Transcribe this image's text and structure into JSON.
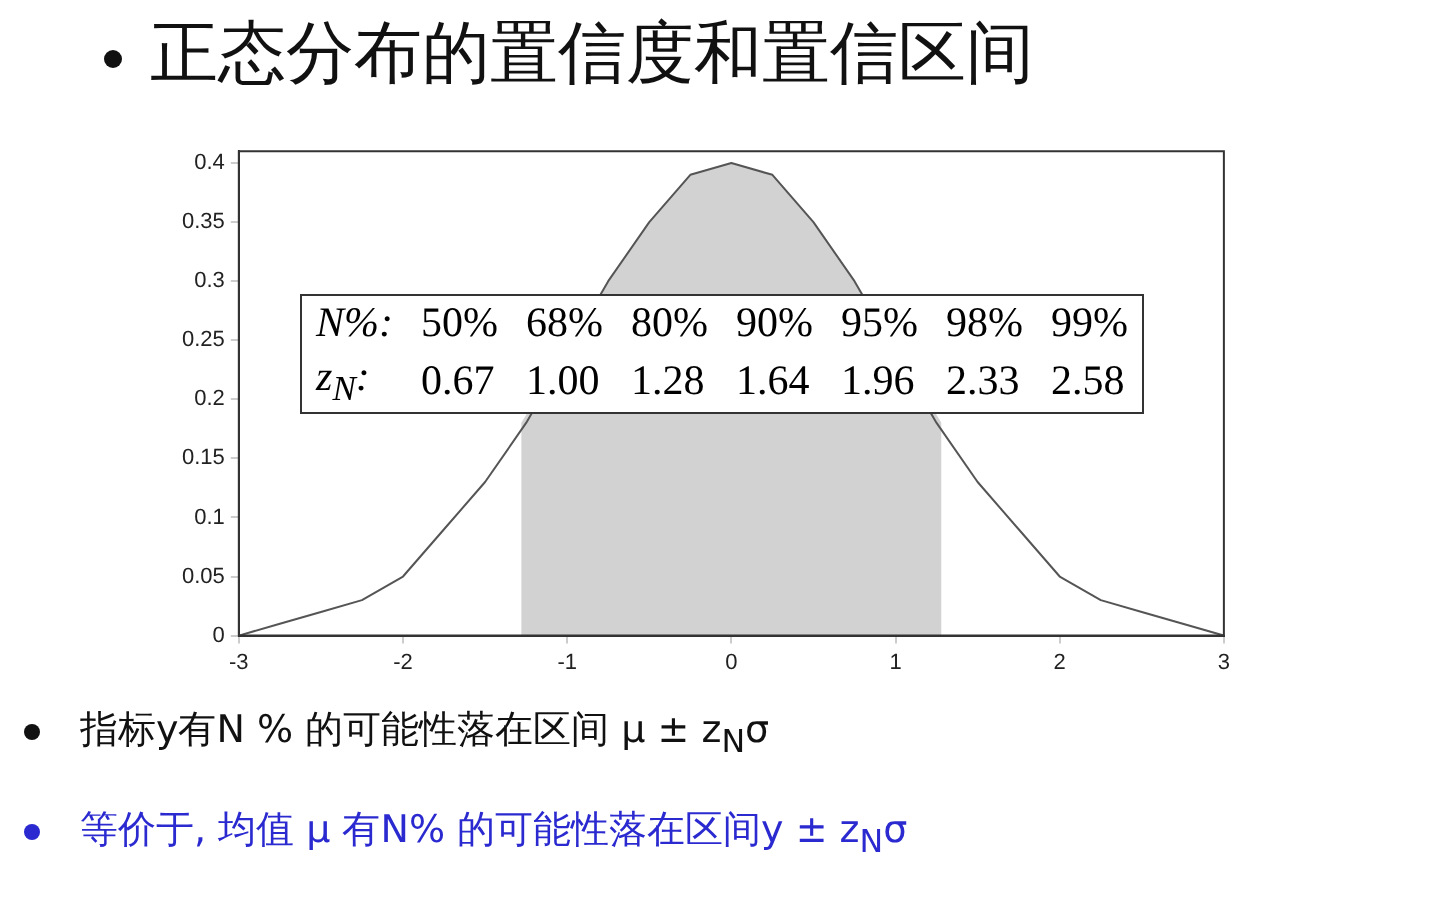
{
  "chart_data": {
    "type": "line",
    "title": "正态分布的置信度和置信区间",
    "x": [
      -3,
      -2.75,
      -2.5,
      -2.25,
      -2,
      -1.75,
      -1.5,
      -1.25,
      -1,
      -0.75,
      -0.5,
      -0.25,
      0,
      0.25,
      0.5,
      0.75,
      1,
      1.25,
      1.5,
      1.75,
      2,
      2.25,
      2.5,
      2.75,
      3
    ],
    "series": [
      {
        "color": "#555555",
        "values": [
          0,
          0.01,
          0.02,
          0.03,
          0.05,
          0.09,
          0.13,
          0.18,
          null,
          0.3,
          0.35,
          0.39,
          0.4,
          0.39,
          0.35,
          0.3,
          null,
          0.18,
          0.13,
          0.09,
          0.05,
          0.03,
          0.02,
          0.01,
          0
        ]
      },
      {
        "type": "area",
        "color": "#bbbbbb",
        "x": [
          -1.28,
          -1,
          -0.75,
          -0.5,
          -0.25,
          0,
          0.25,
          0.5,
          0.75,
          1,
          1.28
        ],
        "values": [
          0.18,
          null,
          0.3,
          0.35,
          0.39,
          0.4,
          0.39,
          0.35,
          0.3,
          null,
          0.18
        ]
      }
    ],
    "xlim": [
      -3,
      3
    ],
    "xticks": [
      -3,
      -2,
      -1,
      0,
      1,
      2,
      3
    ],
    "ylim": [
      0,
      0.41
    ],
    "yticks": [
      0,
      0.05,
      0.1,
      0.15,
      0.2,
      0.25,
      0.3,
      0.35,
      0.4
    ],
    "grid": false,
    "legend": false,
    "marker": "none",
    "annotations": [
      "N%:",
      "50%",
      "68%",
      "80%",
      "90%",
      "95%",
      "98%",
      "99%",
      "z$_{N}$:",
      "0.67",
      "1.00",
      "1.28",
      "1.64",
      "1.96",
      "2.33",
      "2.58",
      "指标y有N % 的可能性落在区间  μ ± z$_{N}$σ",
      "等价于, 均值 μ 有N% 的可能性落在区间y ± z$_{N}$σ"
    ]
  }
}
